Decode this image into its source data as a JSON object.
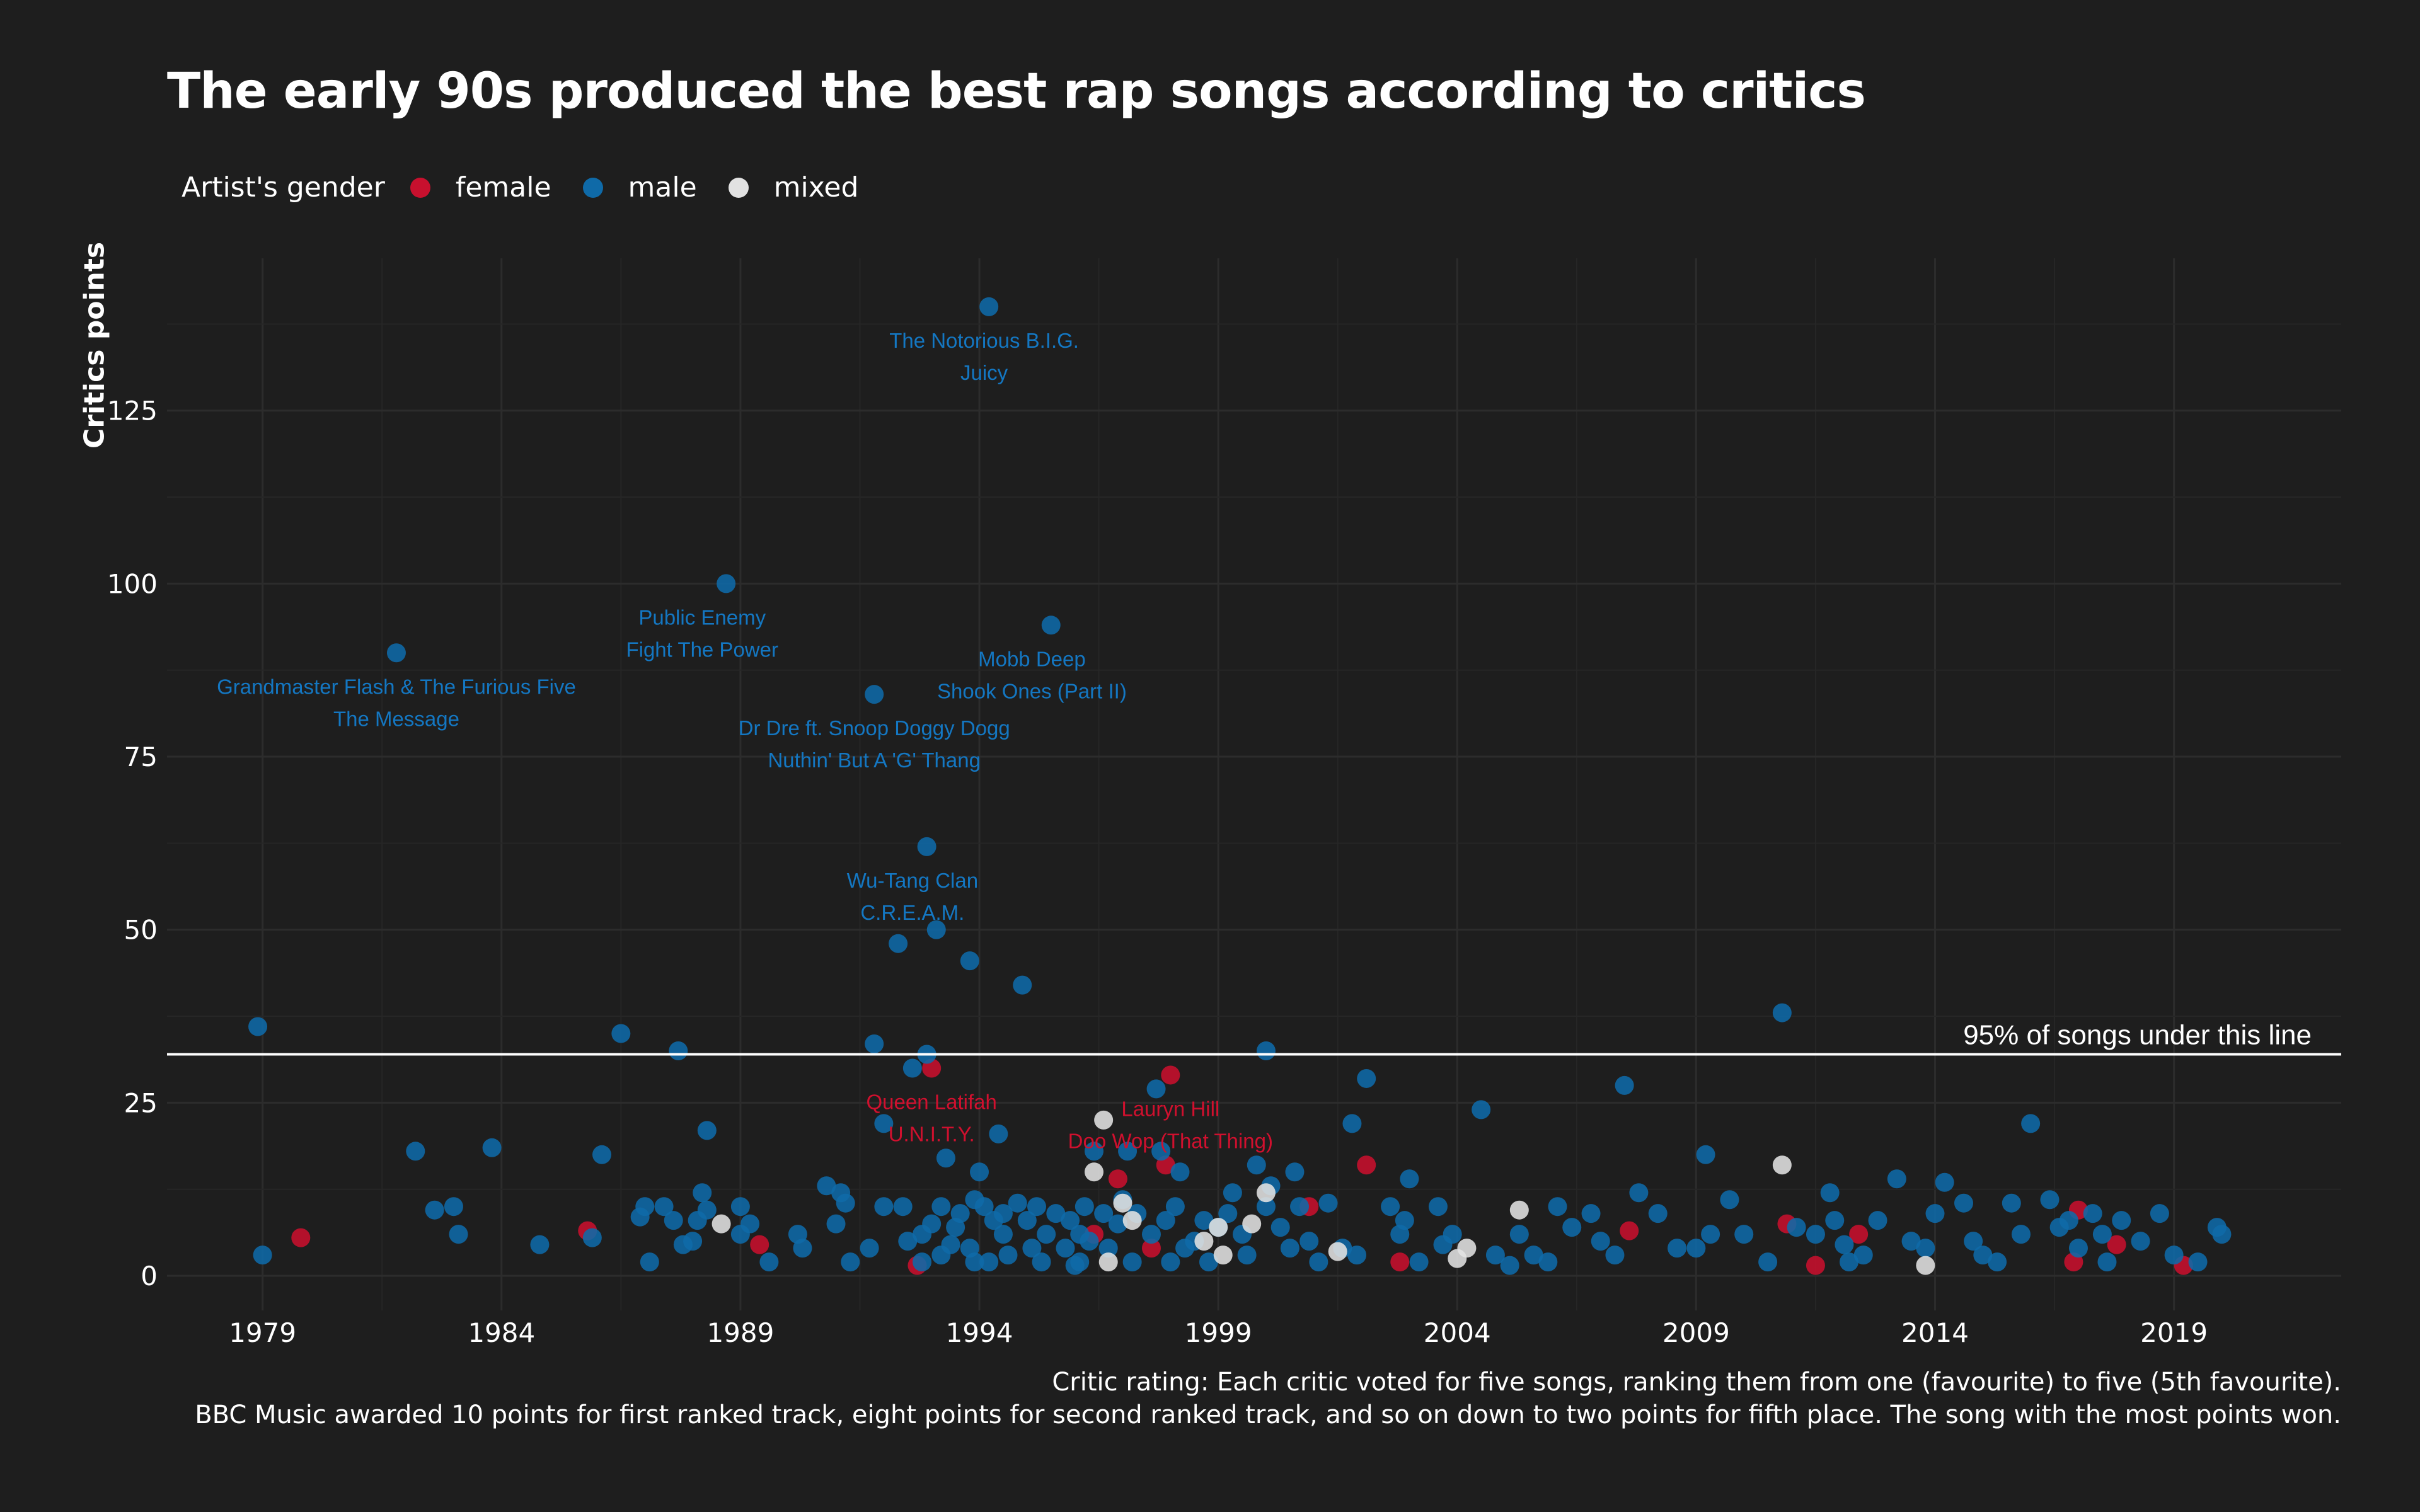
{
  "title": "The early 90s produced the best rap songs according to critics",
  "legend": {
    "title": "Artist's gender",
    "entries": [
      {
        "label": "female",
        "color": "#c8102e"
      },
      {
        "label": "male",
        "color": "#0f6aa8"
      },
      {
        "label": "mixed",
        "color": "#e2e2e2"
      }
    ]
  },
  "caption": {
    "line1": "Critic rating: Each critic voted for five songs, ranking them from one (favourite) to five (5th favourite).",
    "line2": "BBC Music awarded 10 points for first ranked track, eight points for second ranked track, and so on down to two points for fifth place. The song with the most points won."
  },
  "chart_data": {
    "type": "scatter",
    "title": "The early 90s produced the best rap songs according to critics",
    "xlabel": "",
    "ylabel": "Critics points",
    "xlim": [
      1977,
      2022.5
    ],
    "ylim": [
      -5,
      147
    ],
    "x_ticks": [
      1979,
      1984,
      1989,
      1994,
      1999,
      2004,
      2009,
      2014,
      2019
    ],
    "y_ticks": [
      0,
      25,
      50,
      75,
      100,
      125
    ],
    "grid": true,
    "legend_position": "top-left",
    "colors": {
      "female": "#c8102e",
      "male": "#0f6aa8",
      "mixed": "#e2e2e2",
      "reference_line": "#ffffff"
    },
    "reference_line": {
      "y": 32,
      "label": "95% of songs under this line"
    },
    "annotations": [
      {
        "x": 1994.1,
        "y": 140,
        "artist": "The Notorious B.I.G.",
        "song": "Juicy",
        "gender": "male"
      },
      {
        "x": 1988.2,
        "y": 100,
        "artist": "Public Enemy",
        "song": "Fight The Power",
        "gender": "male"
      },
      {
        "x": 1981.8,
        "y": 90,
        "artist": "Grandmaster Flash & The Furious Five",
        "song": "The Message",
        "gender": "male"
      },
      {
        "x": 1995.1,
        "y": 94,
        "artist": "Mobb Deep",
        "song": "Shook Ones (Part II)",
        "gender": "male"
      },
      {
        "x": 1991.8,
        "y": 84,
        "artist": "Dr Dre ft. Snoop Doggy Dogg",
        "song": "Nuthin' But A 'G' Thang",
        "gender": "male"
      },
      {
        "x": 1992.6,
        "y": 62,
        "artist": "Wu-Tang Clan",
        "song": "C.R.E.A.M.",
        "gender": "male"
      },
      {
        "x": 1993.0,
        "y": 30,
        "artist": "Queen Latifah",
        "song": "U.N.I.T.Y.",
        "gender": "female"
      },
      {
        "x": 1998.0,
        "y": 29,
        "artist": "Lauryn Hill",
        "song": "Doo Wop (That Thing)",
        "gender": "female"
      }
    ],
    "series": [
      {
        "name": "female",
        "points": [
          [
            1979.8,
            5.5
          ],
          [
            1985.8,
            6.5
          ],
          [
            1989.4,
            4.5
          ],
          [
            1992.7,
            1.5
          ],
          [
            1993.0,
            30
          ],
          [
            1996.4,
            6
          ],
          [
            1996.9,
            14
          ],
          [
            1997.6,
            4
          ],
          [
            1998.0,
            29
          ],
          [
            1997.9,
            16
          ],
          [
            2000.9,
            10
          ],
          [
            2002.1,
            16
          ],
          [
            2002.8,
            2
          ],
          [
            2007.6,
            6.5
          ],
          [
            2010.9,
            7.5
          ],
          [
            2011.5,
            1.5
          ],
          [
            2012.4,
            6
          ],
          [
            2016.9,
            2
          ],
          [
            2017.0,
            9.5
          ],
          [
            2017.8,
            4.5
          ],
          [
            2019.2,
            1.5
          ]
        ]
      },
      {
        "name": "male",
        "points": [
          [
            1979.0,
            3
          ],
          [
            1978.9,
            36
          ],
          [
            1981.8,
            90
          ],
          [
            1982.2,
            18
          ],
          [
            1982.6,
            9.5
          ],
          [
            1983.0,
            10
          ],
          [
            1983.1,
            6
          ],
          [
            1983.8,
            18.5
          ],
          [
            1984.8,
            4.5
          ],
          [
            1985.9,
            5.5
          ],
          [
            1986.1,
            17.5
          ],
          [
            1986.5,
            35
          ],
          [
            1986.9,
            8.5
          ],
          [
            1987.0,
            10
          ],
          [
            1987.1,
            2
          ],
          [
            1987.4,
            10
          ],
          [
            1987.6,
            8
          ],
          [
            1987.8,
            4.5
          ],
          [
            1987.7,
            32.5
          ],
          [
            1988.0,
            5
          ],
          [
            1988.1,
            8
          ],
          [
            1988.2,
            12
          ],
          [
            1988.3,
            21
          ],
          [
            1988.3,
            9.5
          ],
          [
            1988.7,
            100
          ],
          [
            1989.0,
            6
          ],
          [
            1989.0,
            10
          ],
          [
            1989.2,
            7.5
          ],
          [
            1989.6,
            2
          ],
          [
            1990.2,
            6
          ],
          [
            1990.3,
            4
          ],
          [
            1990.8,
            13
          ],
          [
            1991.0,
            7.5
          ],
          [
            1991.1,
            12
          ],
          [
            1991.2,
            10.5
          ],
          [
            1991.3,
            2
          ],
          [
            1991.7,
            4
          ],
          [
            1991.8,
            84
          ],
          [
            1991.8,
            33.5
          ],
          [
            1992.0,
            22
          ],
          [
            1992.0,
            10
          ],
          [
            1992.3,
            48
          ],
          [
            1992.4,
            10
          ],
          [
            1992.5,
            5
          ],
          [
            1992.6,
            30
          ],
          [
            1992.8,
            2
          ],
          [
            1992.9,
            32
          ],
          [
            1992.9,
            62
          ],
          [
            1992.8,
            6
          ],
          [
            1993.0,
            7.5
          ],
          [
            1993.1,
            50
          ],
          [
            1993.2,
            3
          ],
          [
            1993.3,
            17
          ],
          [
            1993.2,
            10
          ],
          [
            1993.4,
            4.5
          ],
          [
            1993.5,
            7
          ],
          [
            1993.6,
            9
          ],
          [
            1993.8,
            4
          ],
          [
            1993.9,
            11
          ],
          [
            1993.8,
            45.5
          ],
          [
            1993.9,
            2
          ],
          [
            1994.0,
            15
          ],
          [
            1994.1,
            10
          ],
          [
            1994.2,
            140
          ],
          [
            1994.2,
            2
          ],
          [
            1994.3,
            8
          ],
          [
            1994.4,
            20.5
          ],
          [
            1994.5,
            6
          ],
          [
            1994.5,
            9
          ],
          [
            1994.6,
            3
          ],
          [
            1994.8,
            10.5
          ],
          [
            1994.9,
            42
          ],
          [
            1995.0,
            8
          ],
          [
            1995.1,
            4
          ],
          [
            1995.2,
            10
          ],
          [
            1995.3,
            2
          ],
          [
            1995.4,
            6
          ],
          [
            1995.5,
            94
          ],
          [
            1995.6,
            9
          ],
          [
            1995.8,
            4
          ],
          [
            1995.9,
            8
          ],
          [
            1996.0,
            1.5
          ],
          [
            1996.1,
            6
          ],
          [
            1996.2,
            10
          ],
          [
            1996.3,
            5
          ],
          [
            1996.1,
            2
          ],
          [
            1996.4,
            18
          ],
          [
            1996.6,
            9
          ],
          [
            1996.7,
            4
          ],
          [
            1996.9,
            7.5
          ],
          [
            1997.0,
            11
          ],
          [
            1997.1,
            18
          ],
          [
            1997.2,
            2
          ],
          [
            1997.3,
            9
          ],
          [
            1997.6,
            6
          ],
          [
            1997.7,
            27
          ],
          [
            1997.8,
            18
          ],
          [
            1997.9,
            8
          ],
          [
            1998.0,
            2
          ],
          [
            1998.1,
            10
          ],
          [
            1998.2,
            15
          ],
          [
            1998.3,
            4
          ],
          [
            1998.5,
            5
          ],
          [
            1998.7,
            8
          ],
          [
            1998.8,
            2
          ],
          [
            1999.0,
            7
          ],
          [
            1999.2,
            9
          ],
          [
            1999.3,
            12
          ],
          [
            1999.5,
            6
          ],
          [
            1999.6,
            3
          ],
          [
            1999.8,
            16
          ],
          [
            2000.0,
            10
          ],
          [
            2000.0,
            32.5
          ],
          [
            2000.1,
            13
          ],
          [
            2000.3,
            7
          ],
          [
            2000.5,
            4
          ],
          [
            2000.6,
            15
          ],
          [
            2000.7,
            10
          ],
          [
            2000.9,
            5
          ],
          [
            2001.1,
            2
          ],
          [
            2001.3,
            10.5
          ],
          [
            2001.6,
            4
          ],
          [
            2001.8,
            22
          ],
          [
            2001.9,
            3
          ],
          [
            2002.1,
            28.5
          ],
          [
            2002.6,
            10
          ],
          [
            2002.8,
            6
          ],
          [
            2002.9,
            8
          ],
          [
            2003.0,
            14
          ],
          [
            2003.2,
            2
          ],
          [
            2003.6,
            10
          ],
          [
            2003.7,
            4.5
          ],
          [
            2003.9,
            6
          ],
          [
            2004.5,
            24
          ],
          [
            2004.8,
            3
          ],
          [
            2005.1,
            1.5
          ],
          [
            2005.3,
            6
          ],
          [
            2005.6,
            3
          ],
          [
            2005.9,
            2
          ],
          [
            2006.1,
            10
          ],
          [
            2006.4,
            7
          ],
          [
            2006.8,
            9
          ],
          [
            2007.0,
            5
          ],
          [
            2007.3,
            3
          ],
          [
            2007.5,
            27.5
          ],
          [
            2007.8,
            12
          ],
          [
            2008.2,
            9
          ],
          [
            2008.6,
            4
          ],
          [
            2009.0,
            4
          ],
          [
            2009.2,
            17.5
          ],
          [
            2009.3,
            6
          ],
          [
            2009.7,
            11
          ],
          [
            2010.0,
            6
          ],
          [
            2010.5,
            2
          ],
          [
            2010.8,
            38
          ],
          [
            2011.1,
            7
          ],
          [
            2011.5,
            6
          ],
          [
            2011.8,
            12
          ],
          [
            2011.9,
            8
          ],
          [
            2012.1,
            4.5
          ],
          [
            2012.2,
            2
          ],
          [
            2012.5,
            3
          ],
          [
            2012.8,
            8
          ],
          [
            2013.2,
            14
          ],
          [
            2013.5,
            5
          ],
          [
            2013.8,
            4
          ],
          [
            2014.0,
            9
          ],
          [
            2014.2,
            13.5
          ],
          [
            2014.6,
            10.5
          ],
          [
            2014.8,
            5
          ],
          [
            2015.0,
            3
          ],
          [
            2015.3,
            2
          ],
          [
            2015.6,
            10.5
          ],
          [
            2015.8,
            6
          ],
          [
            2016.0,
            22
          ],
          [
            2016.4,
            11
          ],
          [
            2016.6,
            7
          ],
          [
            2016.8,
            8
          ],
          [
            2017.0,
            4
          ],
          [
            2017.3,
            9
          ],
          [
            2017.5,
            6
          ],
          [
            2017.6,
            2
          ],
          [
            2017.9,
            8
          ],
          [
            2018.3,
            5
          ],
          [
            2018.7,
            9
          ],
          [
            2019.0,
            3
          ],
          [
            2019.5,
            2
          ],
          [
            2019.9,
            7
          ],
          [
            2020.0,
            6
          ]
        ]
      },
      {
        "name": "mixed",
        "points": [
          [
            1988.6,
            7.5
          ],
          [
            1996.4,
            15
          ],
          [
            1996.6,
            22.5
          ],
          [
            1997.0,
            10.5
          ],
          [
            1997.2,
            8
          ],
          [
            1996.7,
            2
          ],
          [
            1998.7,
            5
          ],
          [
            1999.0,
            7
          ],
          [
            1999.1,
            3
          ],
          [
            1999.7,
            7.5
          ],
          [
            2000.0,
            12
          ],
          [
            2001.5,
            3.5
          ],
          [
            2004.0,
            2.5
          ],
          [
            2004.2,
            4
          ],
          [
            2005.3,
            9.5
          ],
          [
            2010.8,
            16
          ],
          [
            2013.8,
            1.5
          ]
        ]
      }
    ]
  }
}
